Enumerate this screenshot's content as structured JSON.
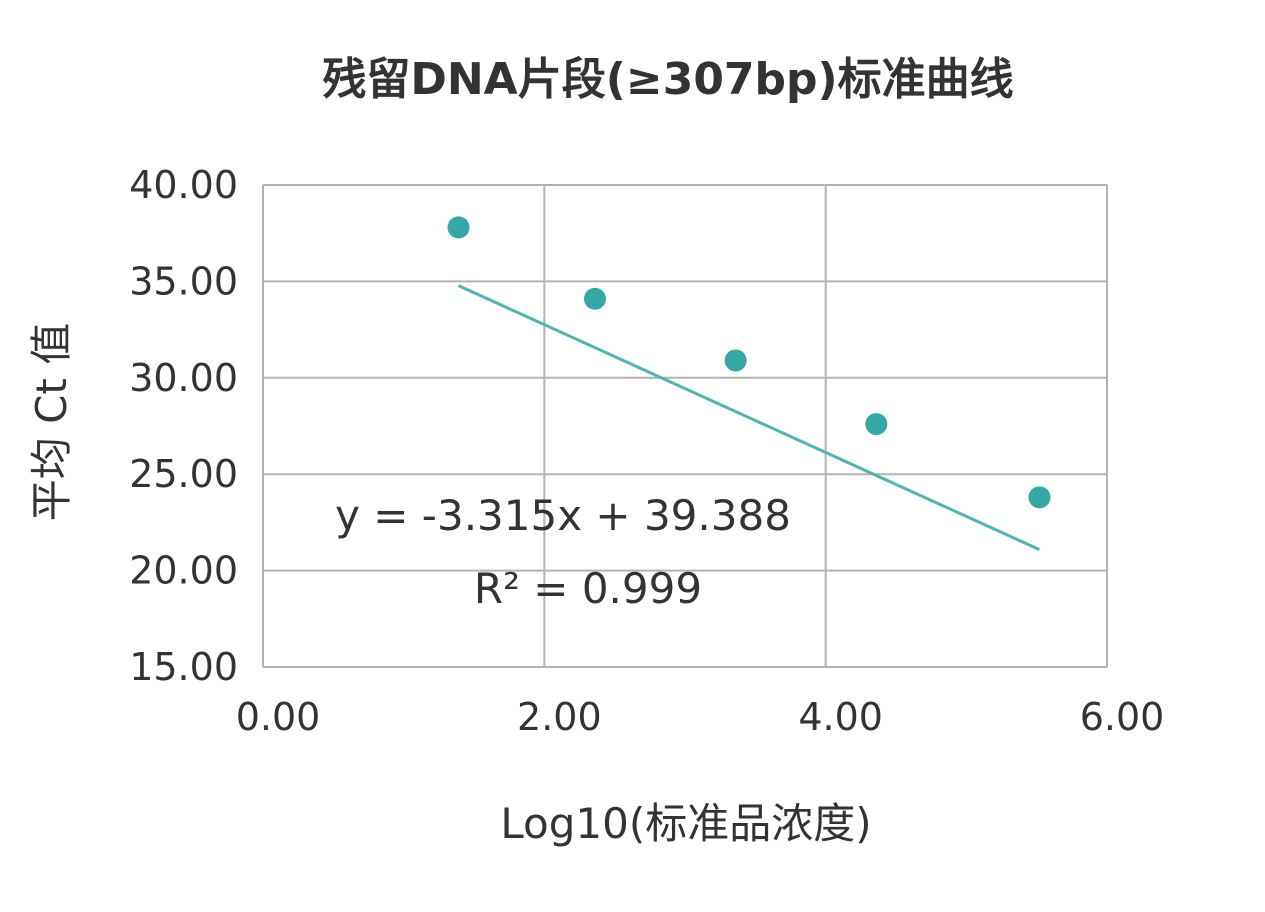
{
  "chart_data": {
    "type": "scatter",
    "title": "残留DNA片段(≥307bp)标准曲线",
    "xlabel": "Log10(标准品浓度)",
    "ylabel": "平均 Ct 值",
    "xlim": [
      0,
      6
    ],
    "ylim": [
      15,
      40
    ],
    "x_ticks": [
      "0.00",
      "2.00",
      "4.00",
      "6.00"
    ],
    "y_ticks": [
      "15.00",
      "20.00",
      "25.00",
      "30.00",
      "35.00",
      "40.00"
    ],
    "grid": true,
    "series": [
      {
        "points": [
          {
            "x": 1.39,
            "y": 37.8
          },
          {
            "x": 2.36,
            "y": 34.1
          },
          {
            "x": 3.36,
            "y": 30.9
          },
          {
            "x": 4.36,
            "y": 27.6
          },
          {
            "x": 5.52,
            "y": 23.8
          }
        ]
      }
    ],
    "trendline": {
      "slope": -3.315,
      "intercept": 39.388,
      "equation": "y = -3.315x + 39.388",
      "r_squared": "R² = 0.999"
    },
    "colors": {
      "marker": "#34a8a4",
      "trendline": "#4fb5b1",
      "grid": "#b3b3b3",
      "text": "#333333"
    }
  }
}
